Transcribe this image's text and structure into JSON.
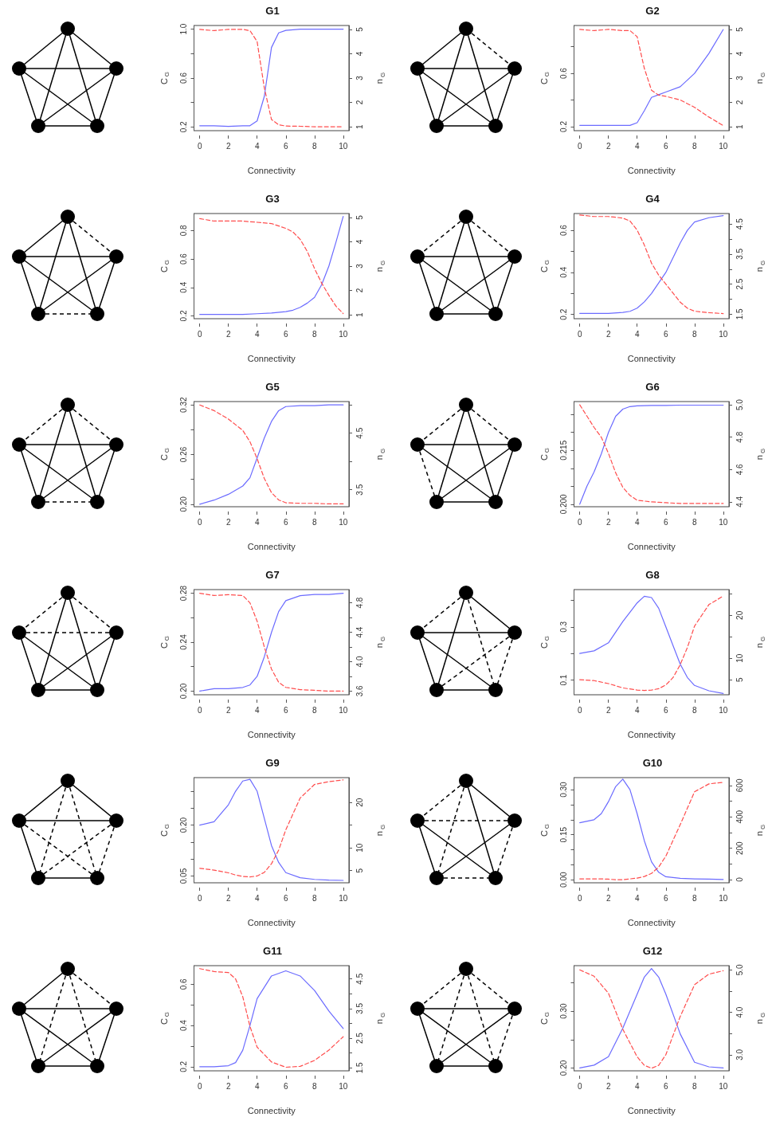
{
  "chart_data": [
    {
      "type": "line",
      "title": "G1",
      "xlabel": "Connectivity",
      "ylabel": "C$_{G}$",
      "y2label": "n$_{G}$",
      "x": [
        0,
        1,
        2,
        3,
        3.5,
        4,
        4.5,
        5,
        5.5,
        6,
        7,
        8,
        9,
        10
      ],
      "xlim": [
        -0.4,
        10.4
      ],
      "xticks": [
        0,
        2,
        4,
        6,
        8,
        10
      ],
      "ylim": [
        0.17,
        1.03
      ],
      "yticks": [
        0.2,
        {
          "value": 0.4,
          "label": null
        },
        0.6,
        {
          "value": 0.8,
          "label": null
        },
        {
          "value": 1.0,
          "label": "1.0"
        }
      ],
      "y2lim": [
        0.84,
        5.16
      ],
      "y2ticks": [
        1,
        2,
        3,
        4,
        5
      ],
      "marker": "none",
      "grid": false,
      "series": [
        {
          "color": "#6b6bff",
          "line_style": "solid",
          "values": [
            0.21,
            0.21,
            0.205,
            0.21,
            0.21,
            0.25,
            0.45,
            0.85,
            0.97,
            0.99,
            1.0,
            1.0,
            1.0,
            1.0
          ]
        },
        {
          "color": "#ff4d4d",
          "line_style": "dashed",
          "axis": "y2",
          "values": [
            5.0,
            4.95,
            5.0,
            5.0,
            4.95,
            4.5,
            2.6,
            1.3,
            1.08,
            1.03,
            1.02,
            1.0,
            1.0,
            1.0
          ]
        }
      ]
    },
    {
      "type": "line",
      "title": "G2",
      "xlabel": "Connectivity",
      "ylabel": "C$_{G}$",
      "y2label": "n$_{G}$",
      "x": [
        0,
        1,
        2,
        3,
        3.5,
        4,
        4.5,
        5,
        5.5,
        6,
        7,
        8,
        9,
        10
      ],
      "xlim": [
        -0.4,
        10.4
      ],
      "xticks": [
        0,
        2,
        4,
        6,
        8,
        10
      ],
      "ylim": [
        0.17,
        0.96
      ],
      "yticks": [
        0.2,
        {
          "value": 0.4,
          "label": null
        },
        0.6,
        {
          "value": 0.8,
          "label": null
        }
      ],
      "y2lim": [
        0.84,
        5.16
      ],
      "y2ticks": [
        1,
        2,
        3,
        4,
        5
      ],
      "marker": "none",
      "grid": false,
      "series": [
        {
          "color": "#6b6bff",
          "line_style": "solid",
          "values": [
            0.21,
            0.21,
            0.21,
            0.21,
            0.21,
            0.23,
            0.32,
            0.42,
            0.44,
            0.46,
            0.5,
            0.6,
            0.75,
            0.93
          ]
        },
        {
          "color": "#ff4d4d",
          "line_style": "dashed",
          "axis": "y2",
          "values": [
            5.0,
            4.95,
            5.0,
            4.95,
            4.95,
            4.7,
            3.4,
            2.5,
            2.3,
            2.25,
            2.1,
            1.8,
            1.4,
            1.05
          ]
        }
      ]
    },
    {
      "type": "line",
      "title": "G3",
      "xlabel": "Connectivity",
      "ylabel": "C$_{G}$",
      "y2label": "n$_{G}$",
      "x": [
        0,
        1,
        2,
        3,
        4,
        5,
        6,
        6.5,
        7,
        7.5,
        8,
        8.5,
        9,
        9.5,
        10
      ],
      "xlim": [
        -0.4,
        10.4
      ],
      "xticks": [
        0,
        2,
        4,
        6,
        8,
        10
      ],
      "ylim": [
        0.18,
        0.92
      ],
      "yticks": [
        0.2,
        0.4,
        0.6,
        0.8
      ],
      "y2lim": [
        0.84,
        5.16
      ],
      "y2ticks": [
        1,
        2,
        3,
        4,
        5
      ],
      "marker": "none",
      "grid": false,
      "series": [
        {
          "color": "#6b6bff",
          "line_style": "solid",
          "values": [
            0.21,
            0.21,
            0.21,
            0.21,
            0.215,
            0.22,
            0.23,
            0.24,
            0.26,
            0.29,
            0.33,
            0.42,
            0.55,
            0.72,
            0.9
          ]
        },
        {
          "color": "#ff4d4d",
          "line_style": "dashed",
          "axis": "y2",
          "values": [
            4.95,
            4.85,
            4.85,
            4.85,
            4.8,
            4.75,
            4.55,
            4.4,
            4.1,
            3.6,
            2.9,
            2.3,
            1.8,
            1.35,
            1.05
          ]
        }
      ]
    },
    {
      "type": "line",
      "title": "G4",
      "xlabel": "Connectivity",
      "ylabel": "C$_{G}$",
      "y2label": "n$_{G}$",
      "x": [
        0,
        1,
        2,
        3,
        3.5,
        4,
        4.5,
        5,
        5.5,
        6,
        6.5,
        7,
        7.5,
        8,
        9,
        10
      ],
      "xlim": [
        -0.4,
        10.4
      ],
      "xticks": [
        0,
        2,
        4,
        6,
        8,
        10
      ],
      "ylim": [
        0.18,
        0.68
      ],
      "yticks": [
        0.2,
        {
          "value": 0.3,
          "label": null
        },
        0.4,
        {
          "value": 0.5,
          "label": null
        },
        0.6
      ],
      "y2lim": [
        1.35,
        4.85
      ],
      "y2ticks": [
        1.5,
        {
          "value": 2.0,
          "label": null
        },
        2.5,
        {
          "value": 3.0,
          "label": null
        },
        3.5,
        {
          "value": 4.0,
          "label": null
        },
        4.5
      ],
      "marker": "none",
      "grid": false,
      "series": [
        {
          "color": "#6b6bff",
          "line_style": "solid",
          "values": [
            0.205,
            0.205,
            0.205,
            0.21,
            0.215,
            0.23,
            0.26,
            0.3,
            0.35,
            0.4,
            0.47,
            0.54,
            0.6,
            0.64,
            0.66,
            0.67
          ]
        },
        {
          "color": "#ff4d4d",
          "line_style": "dashed",
          "axis": "y2",
          "values": [
            4.8,
            4.75,
            4.75,
            4.7,
            4.6,
            4.3,
            3.8,
            3.2,
            2.8,
            2.5,
            2.2,
            1.9,
            1.7,
            1.6,
            1.55,
            1.52
          ]
        }
      ]
    },
    {
      "type": "line",
      "title": "G5",
      "xlabel": "Connectivity",
      "ylabel": "C$_{G}$",
      "y2label": "n$_{G}$",
      "x": [
        0,
        1,
        2,
        3,
        3.5,
        4,
        4.5,
        5,
        5.5,
        6,
        7,
        8,
        9,
        10
      ],
      "xlim": [
        -0.4,
        10.4
      ],
      "xticks": [
        0,
        2,
        4,
        6,
        8,
        10
      ],
      "ylim": [
        0.197,
        0.324
      ],
      "yticks": [
        {
          "value": 0.2,
          "label": "0.20"
        },
        {
          "value": 0.23,
          "label": null
        },
        0.26,
        {
          "value": 0.29,
          "label": null
        },
        0.32
      ],
      "y2lim": [
        3.2,
        5.06
      ],
      "y2ticks": [
        3.5,
        {
          "value": 4.0,
          "label": null
        },
        4.5,
        {
          "value": 5.0,
          "label": null
        }
      ],
      "marker": "none",
      "grid": false,
      "series": [
        {
          "color": "#6b6bff",
          "line_style": "solid",
          "values": [
            0.2,
            0.205,
            0.212,
            0.222,
            0.232,
            0.256,
            0.28,
            0.3,
            0.313,
            0.318,
            0.319,
            0.319,
            0.32,
            0.32
          ]
        },
        {
          "color": "#ff4d4d",
          "line_style": "dashed",
          "axis": "y2",
          "values": [
            5.0,
            4.9,
            4.75,
            4.55,
            4.35,
            4.05,
            3.7,
            3.45,
            3.32,
            3.27,
            3.26,
            3.26,
            3.25,
            3.25
          ]
        }
      ]
    },
    {
      "type": "line",
      "title": "G6",
      "xlabel": "Connectivity",
      "ylabel": "C$_{G}$",
      "y2label": "n$_{G}$",
      "x": [
        0,
        0.5,
        1,
        1.5,
        2,
        2.5,
        3,
        3.5,
        4,
        5,
        6,
        7,
        8,
        10
      ],
      "xlim": [
        -0.4,
        10.4
      ],
      "xticks": [
        0,
        2,
        4,
        6,
        8,
        10
      ],
      "ylim": [
        0.1993,
        0.2286
      ],
      "yticks": [
        {
          "value": 0.2,
          "label": "0.200"
        },
        {
          "value": 0.205,
          "label": null
        },
        {
          "value": 0.21,
          "label": null
        },
        0.215,
        {
          "value": 0.22,
          "label": null
        },
        {
          "value": 0.225,
          "label": null
        }
      ],
      "y2lim": [
        4.37,
        5.02
      ],
      "y2ticks": [
        4.4,
        4.6,
        4.8,
        {
          "value": 5.0,
          "label": "5.0"
        }
      ],
      "marker": "none",
      "grid": false,
      "series": [
        {
          "color": "#6b6bff",
          "line_style": "solid",
          "values": [
            0.2,
            0.205,
            0.209,
            0.214,
            0.22,
            0.2245,
            0.2265,
            0.2272,
            0.2274,
            0.2275,
            0.2275,
            0.2276,
            0.2276,
            0.2276
          ]
        },
        {
          "color": "#ff4d4d",
          "line_style": "dashed",
          "axis": "y2",
          "values": [
            5.0,
            4.93,
            4.86,
            4.8,
            4.7,
            4.58,
            4.49,
            4.44,
            4.41,
            4.4,
            4.395,
            4.39,
            4.39,
            4.39
          ]
        }
      ]
    },
    {
      "type": "line",
      "title": "G7",
      "xlabel": "Connectivity",
      "ylabel": "C$_{G}$",
      "y2label": "n$_{G}$",
      "x": [
        0,
        1,
        2,
        3,
        3.5,
        4,
        4.5,
        5,
        5.5,
        6,
        7,
        8,
        9,
        10
      ],
      "xlim": [
        -0.4,
        10.4
      ],
      "xticks": [
        0,
        2,
        4,
        6,
        8,
        10
      ],
      "ylim": [
        0.197,
        0.283
      ],
      "yticks": [
        {
          "value": 0.2,
          "label": "0.20"
        },
        {
          "value": 0.22,
          "label": null
        },
        0.24,
        {
          "value": 0.26,
          "label": null
        },
        0.28
      ],
      "y2lim": [
        3.55,
        4.98
      ],
      "y2ticks": [
        3.6,
        {
          "value": 3.8,
          "label": null
        },
        {
          "value": 4.0,
          "label": "4.0"
        },
        {
          "value": 4.2,
          "label": null
        },
        4.4,
        {
          "value": 4.6,
          "label": null
        },
        4.8
      ],
      "marker": "none",
      "grid": false,
      "series": [
        {
          "color": "#6b6bff",
          "line_style": "solid",
          "values": [
            0.2,
            0.202,
            0.202,
            0.203,
            0.205,
            0.212,
            0.228,
            0.248,
            0.265,
            0.274,
            0.278,
            0.279,
            0.279,
            0.28
          ]
        },
        {
          "color": "#ff4d4d",
          "line_style": "dashed",
          "axis": "y2",
          "values": [
            4.93,
            4.9,
            4.91,
            4.9,
            4.8,
            4.55,
            4.2,
            3.9,
            3.72,
            3.65,
            3.62,
            3.61,
            3.6,
            3.6
          ]
        }
      ]
    },
    {
      "type": "line",
      "title": "G8",
      "xlabel": "Connectivity",
      "ylabel": "C$_{G}$",
      "y2label": "n$_{G}$",
      "x": [
        0,
        1,
        2,
        3,
        4,
        4.5,
        5,
        5.5,
        6,
        6.5,
        7,
        7.5,
        8,
        9,
        10
      ],
      "xlim": [
        -0.4,
        10.4
      ],
      "xticks": [
        0,
        2,
        4,
        6,
        8,
        10
      ],
      "ylim": [
        0.045,
        0.44
      ],
      "yticks": [
        0.1,
        {
          "value": 0.2,
          "label": null
        },
        0.3,
        {
          "value": 0.4,
          "label": null
        }
      ],
      "y2lim": [
        1.5,
        26
      ],
      "y2ticks": [
        5,
        10,
        {
          "value": 15,
          "label": null
        },
        20,
        {
          "value": 25,
          "label": null
        }
      ],
      "marker": "none",
      "grid": false,
      "series": [
        {
          "color": "#6b6bff",
          "line_style": "solid",
          "values": [
            0.2,
            0.21,
            0.24,
            0.32,
            0.39,
            0.415,
            0.41,
            0.37,
            0.3,
            0.23,
            0.16,
            0.11,
            0.08,
            0.06,
            0.05
          ]
        },
        {
          "color": "#ff4d4d",
          "line_style": "dashed",
          "axis": "y2",
          "values": [
            5,
            4.8,
            4.1,
            3.1,
            2.6,
            2.5,
            2.6,
            2.9,
            3.8,
            5.5,
            8.5,
            12.5,
            17.5,
            22.5,
            24.5
          ]
        }
      ]
    },
    {
      "type": "line",
      "title": "G9",
      "xlabel": "Connectivity",
      "ylabel": "C$_{G}$",
      "y2label": "n$_{G}$",
      "x": [
        0,
        1,
        2,
        2.5,
        3,
        3.5,
        4,
        4.5,
        5,
        5.5,
        6,
        7,
        8,
        9,
        10
      ],
      "xlim": [
        -0.4,
        10.4
      ],
      "xticks": [
        0,
        2,
        4,
        6,
        8,
        10
      ],
      "ylim": [
        0.03,
        0.34
      ],
      "yticks": [
        0.05,
        {
          "value": 0.1,
          "label": null
        },
        {
          "value": 0.15,
          "label": null
        },
        {
          "value": 0.2,
          "label": "0.20"
        },
        {
          "value": 0.25,
          "label": null
        },
        {
          "value": 0.3,
          "label": null
        }
      ],
      "y2lim": [
        2.3,
        25.5
      ],
      "y2ticks": [
        5,
        10,
        {
          "value": 15,
          "label": null
        },
        20
      ],
      "marker": "none",
      "grid": false,
      "series": [
        {
          "color": "#6b6bff",
          "line_style": "solid",
          "values": [
            0.2,
            0.21,
            0.26,
            0.3,
            0.33,
            0.335,
            0.3,
            0.22,
            0.14,
            0.09,
            0.06,
            0.045,
            0.04,
            0.038,
            0.037
          ]
        },
        {
          "color": "#ff4d4d",
          "line_style": "dashed",
          "axis": "y2",
          "values": [
            5.5,
            5.1,
            4.5,
            4.0,
            3.7,
            3.6,
            3.8,
            4.6,
            6.5,
            9.5,
            14,
            21,
            24,
            24.6,
            25
          ]
        }
      ]
    },
    {
      "type": "line",
      "title": "G10",
      "xlabel": "Connectivity",
      "ylabel": "C$_{G}$",
      "y2label": "n$_{G}$",
      "x": [
        0,
        1,
        1.5,
        2,
        2.5,
        3,
        3.5,
        4,
        4.5,
        5,
        5.5,
        6,
        7,
        8,
        9,
        10
      ],
      "xlim": [
        -0.4,
        10.4
      ],
      "xticks": [
        0,
        2,
        4,
        6,
        8,
        10
      ],
      "ylim": [
        -0.01,
        0.34
      ],
      "yticks": [
        {
          "value": 0,
          "label": "0.00"
        },
        {
          "value": 0.05,
          "label": null
        },
        {
          "value": 0.1,
          "label": null
        },
        0.15,
        {
          "value": 0.2,
          "label": null
        },
        {
          "value": 0.25,
          "label": null
        },
        {
          "value": 0.3,
          "label": "0.30"
        }
      ],
      "y2lim": [
        -20,
        650
      ],
      "y2ticks": [
        0,
        {
          "value": 100,
          "label": null
        },
        200,
        {
          "value": 300,
          "label": null
        },
        400,
        {
          "value": 500,
          "label": null
        },
        600
      ],
      "marker": "none",
      "grid": false,
      "series": [
        {
          "color": "#6b6bff",
          "line_style": "solid",
          "values": [
            0.19,
            0.2,
            0.22,
            0.26,
            0.31,
            0.335,
            0.3,
            0.22,
            0.13,
            0.06,
            0.025,
            0.01,
            0.005,
            0.003,
            0.002,
            0.001
          ]
        },
        {
          "color": "#ff4d4d",
          "line_style": "dashed",
          "axis": "y2",
          "values": [
            5,
            5,
            5,
            3,
            0,
            0,
            5,
            10,
            20,
            40,
            80,
            150,
            350,
            560,
            610,
            620
          ]
        }
      ]
    },
    {
      "type": "line",
      "title": "G11",
      "xlabel": "Connectivity",
      "ylabel": "C$_{G}$",
      "y2label": "n$_{G}$",
      "x": [
        0,
        1,
        2,
        2.5,
        3,
        3.5,
        4,
        5,
        6,
        7,
        8,
        9,
        10
      ],
      "xlim": [
        -0.4,
        10.4
      ],
      "xticks": [
        0,
        2,
        4,
        6,
        8,
        10
      ],
      "ylim": [
        0.18,
        0.69
      ],
      "yticks": [
        0.2,
        {
          "value": 0.3,
          "label": null
        },
        0.4,
        {
          "value": 0.5,
          "label": null
        },
        0.6
      ],
      "y2lim": [
        1.4,
        4.95
      ],
      "y2ticks": [
        1.5,
        {
          "value": 2.0,
          "label": null
        },
        2.5,
        {
          "value": 3.0,
          "label": null
        },
        3.5,
        {
          "value": 4.0,
          "label": null
        },
        4.5
      ],
      "marker": "none",
      "grid": false,
      "series": [
        {
          "color": "#6b6bff",
          "line_style": "solid",
          "values": [
            0.2,
            0.2,
            0.205,
            0.22,
            0.28,
            0.4,
            0.53,
            0.64,
            0.665,
            0.64,
            0.57,
            0.47,
            0.385
          ]
        },
        {
          "color": "#ff4d4d",
          "line_style": "dashed",
          "axis": "y2",
          "values": [
            4.85,
            4.75,
            4.72,
            4.5,
            3.9,
            2.9,
            2.2,
            1.7,
            1.52,
            1.55,
            1.75,
            2.1,
            2.55
          ]
        }
      ]
    },
    {
      "type": "line",
      "title": "G12",
      "xlabel": "Connectivity",
      "ylabel": "C$_{G}$",
      "y2label": "n$_{G}$",
      "x": [
        0,
        1,
        2,
        3,
        4,
        4.5,
        5,
        5.5,
        6,
        7,
        8,
        9,
        10
      ],
      "xlim": [
        -0.4,
        10.4
      ],
      "xticks": [
        0,
        2,
        4,
        6,
        8,
        10
      ],
      "ylim": [
        0.195,
        0.38
      ],
      "yticks": [
        {
          "value": 0.2,
          "label": "0.20"
        },
        {
          "value": 0.25,
          "label": null
        },
        {
          "value": 0.3,
          "label": "0.30"
        },
        {
          "value": 0.35,
          "label": null
        }
      ],
      "y2lim": [
        2.62,
        5.1
      ],
      "y2ticks": [
        {
          "value": 3.0,
          "label": "3.0"
        },
        {
          "value": 3.5,
          "label": null
        },
        {
          "value": 4.0,
          "label": "4.0"
        },
        {
          "value": 4.5,
          "label": null
        },
        {
          "value": 5.0,
          "label": "5.0"
        }
      ],
      "marker": "none",
      "grid": false,
      "series": [
        {
          "color": "#6b6bff",
          "line_style": "solid",
          "values": [
            0.2,
            0.205,
            0.22,
            0.27,
            0.33,
            0.36,
            0.375,
            0.36,
            0.33,
            0.26,
            0.21,
            0.202,
            0.2
          ]
        },
        {
          "color": "#ff4d4d",
          "line_style": "dashed",
          "axis": "y2",
          "values": [
            5.0,
            4.85,
            4.45,
            3.6,
            2.95,
            2.75,
            2.68,
            2.75,
            3.0,
            3.9,
            4.65,
            4.9,
            4.98
          ]
        }
      ]
    }
  ]
}
